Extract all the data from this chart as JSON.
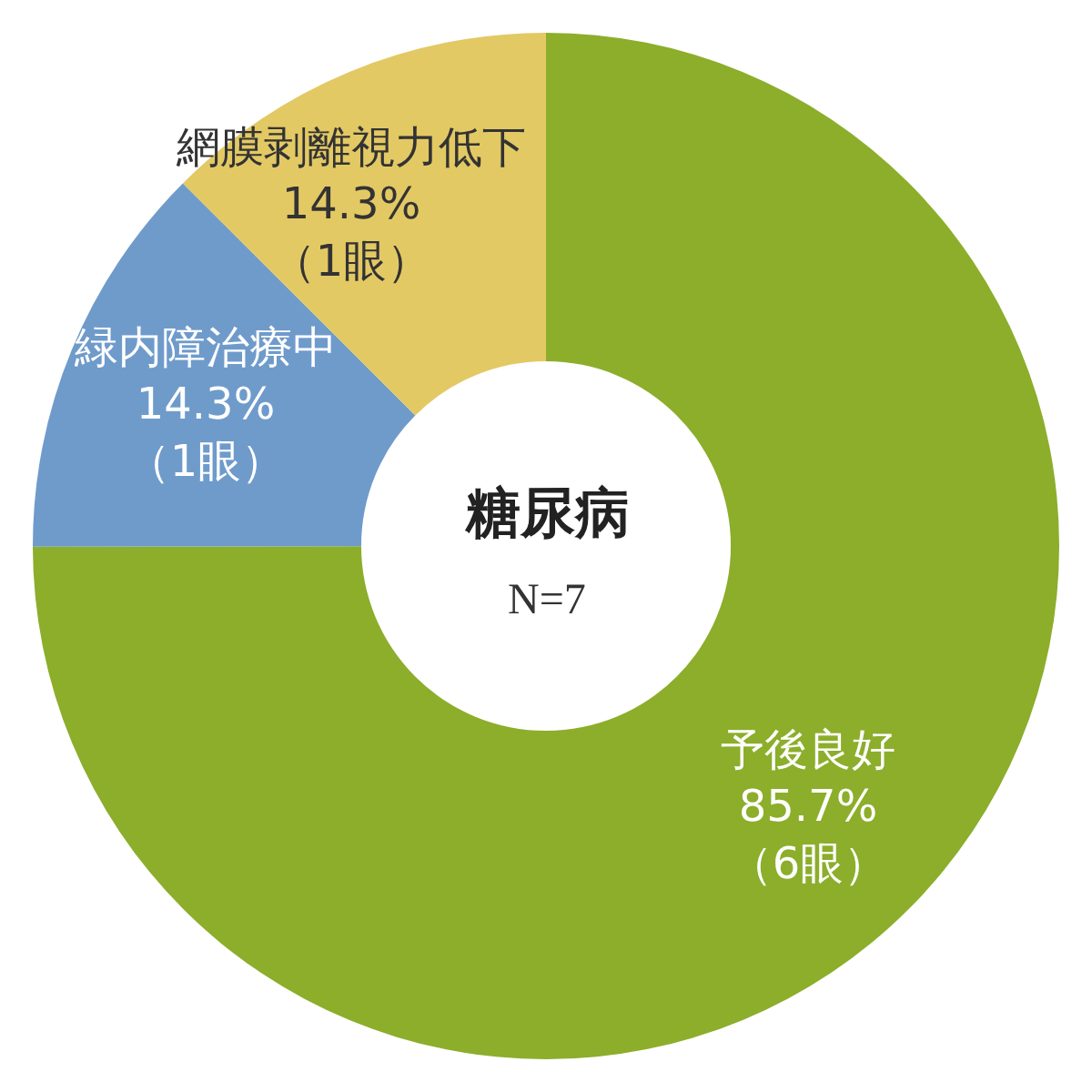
{
  "chart_data": {
    "type": "donut",
    "title": "糖尿病",
    "annotations": [
      "N=7"
    ],
    "categories": [
      "予後良好",
      "緑内障治療中",
      "網膜剥離視力低下"
    ],
    "values": [
      85.7,
      14.3,
      14.3
    ],
    "colors": [
      "#8cae2b",
      "#6f9bcb",
      "#e3c964"
    ],
    "value_labels": [
      "85.7%\n（6眼）",
      "14.3%\n（1眼）",
      "14.3%\n（1眼）"
    ],
    "legend": false
  }
}
